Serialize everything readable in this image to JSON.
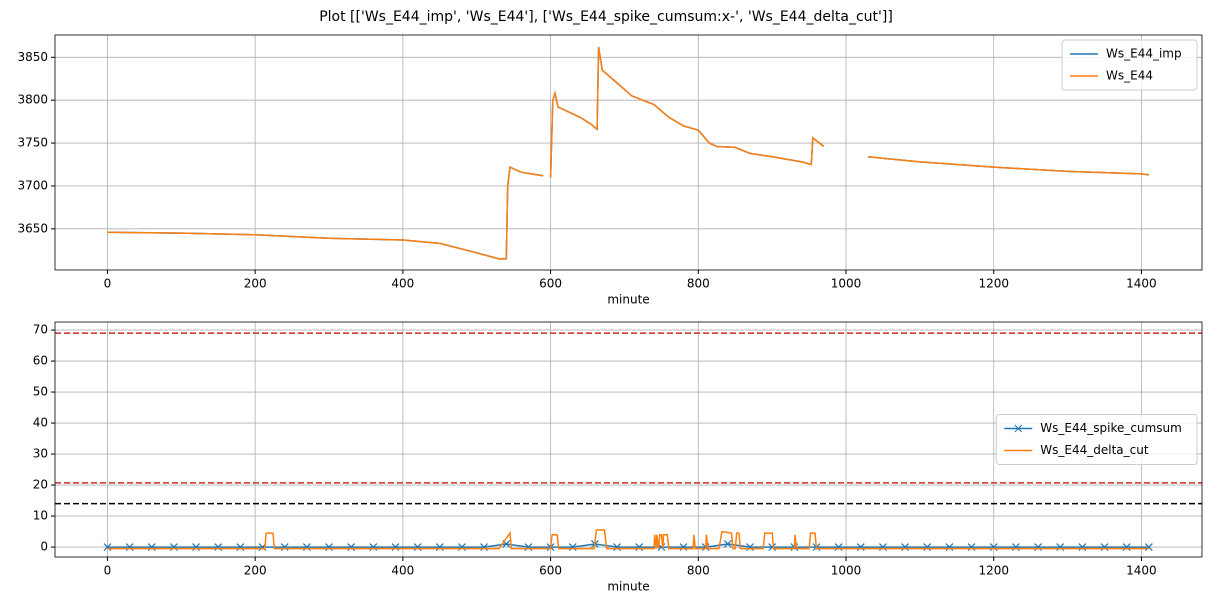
{
  "title": "Plot [['Ws_E44_imp', 'Ws_E44'], ['Ws_E44_spike_cumsum:x-', 'Ws_E44_delta_cut']]",
  "chart_data": [
    {
      "type": "line",
      "xlabel": "minute",
      "x": [
        0,
        100,
        200,
        300,
        400,
        450,
        500,
        530,
        540,
        542,
        545,
        550,
        560,
        590,
        595,
        600,
        603,
        606,
        610,
        640,
        655,
        660,
        663,
        665,
        670,
        690,
        710,
        740,
        760,
        780,
        800,
        815,
        825,
        850,
        870,
        900,
        940,
        953,
        955,
        970,
        1000,
        1030,
        1100,
        1200,
        1300,
        1400,
        1410
      ],
      "series": [
        {
          "name": "Ws_E44_imp",
          "color": "#1f77b4",
          "values": [
            3646,
            3645,
            3643,
            3639,
            3637,
            3633,
            3622,
            3615,
            3615,
            3700,
            3722,
            3720,
            3716,
            3712,
            null,
            3710,
            3800,
            3808,
            3792,
            3780,
            3772,
            3768,
            3766,
            3862,
            3835,
            3820,
            3805,
            3795,
            3780,
            3770,
            3765,
            3750,
            3746,
            3745,
            3738,
            3734,
            3728,
            3725,
            3756,
            3746,
            null,
            3734,
            3728,
            3722,
            3717,
            3714,
            3713
          ]
        },
        {
          "name": "Ws_E44",
          "color": "#ff7f0e",
          "values": [
            3646,
            3645,
            3643,
            3639,
            3637,
            3633,
            3622,
            3615,
            3615,
            3700,
            3722,
            3720,
            3716,
            3712,
            null,
            3710,
            3800,
            3808,
            3792,
            3780,
            3772,
            3768,
            3766,
            3862,
            3835,
            3820,
            3805,
            3795,
            3780,
            3770,
            3765,
            3750,
            3746,
            3745,
            3738,
            3734,
            3728,
            3725,
            3756,
            3746,
            null,
            3734,
            3728,
            3722,
            3717,
            3714,
            3713
          ]
        }
      ],
      "xlim": [
        -71,
        1482
      ],
      "xticks": [
        0,
        200,
        400,
        600,
        800,
        1000,
        1200,
        1400
      ],
      "ylim": [
        3602,
        3876
      ],
      "yticks": [
        3650,
        3700,
        3750,
        3800,
        3850
      ],
      "grid": true,
      "legend": "upper right"
    },
    {
      "type": "line",
      "xlabel": "minute",
      "series": [
        {
          "name": "Ws_E44_spike_cumsum",
          "color": "#1f77b4",
          "marker": "x",
          "x": [
            0,
            30,
            60,
            90,
            120,
            150,
            180,
            210,
            240,
            270,
            300,
            330,
            360,
            390,
            420,
            450,
            480,
            510,
            540,
            570,
            600,
            630,
            660,
            690,
            720,
            750,
            780,
            810,
            840,
            870,
            900,
            930,
            960,
            990,
            1020,
            1050,
            1080,
            1110,
            1140,
            1170,
            1200,
            1230,
            1260,
            1290,
            1320,
            1350,
            1380,
            1410
          ],
          "values": [
            0,
            0,
            0,
            0,
            0,
            0,
            0,
            0,
            0,
            0,
            0,
            0,
            0,
            0,
            0,
            0,
            0,
            0,
            1,
            0,
            0,
            0,
            1,
            0,
            0,
            0,
            0,
            0,
            1,
            0,
            0,
            0,
            0,
            0,
            0,
            0,
            0,
            0,
            0,
            0,
            0,
            0,
            0,
            0,
            0,
            0,
            0,
            0
          ]
        },
        {
          "name": "Ws_E44_delta_cut",
          "color": "#ff7f0e",
          "x": [
            0,
            213,
            215,
            224,
            226,
            530,
            545,
            547,
            600,
            602,
            609,
            611,
            659,
            662,
            673,
            676,
            740,
            741,
            743,
            744,
            746,
            748,
            750,
            752,
            753,
            758,
            760,
            793,
            794,
            796,
            810,
            811,
            813,
            828,
            832,
            845,
            847,
            850,
            852,
            855,
            857,
            888,
            890,
            900,
            902,
            930,
            931,
            933,
            950,
            952,
            958,
            960,
            1410
          ],
          "values": [
            -0.5,
            -0.5,
            4.5,
            4.5,
            -0.5,
            -0.5,
            4.5,
            -0.5,
            -0.5,
            4,
            4,
            -0.5,
            -0.5,
            5.5,
            5.5,
            -0.5,
            -0.5,
            4,
            -0.5,
            4,
            -0.5,
            4,
            4,
            -0.5,
            4,
            4,
            -0.5,
            -0.5,
            4,
            -0.5,
            -0.5,
            4,
            -0.5,
            -0.5,
            5,
            4.5,
            -0.5,
            -0.5,
            4.5,
            4.5,
            -0.5,
            -0.5,
            4.5,
            4.5,
            -0.5,
            -0.5,
            4,
            -0.5,
            -0.5,
            4.5,
            4.5,
            -0.5,
            -0.5
          ]
        }
      ],
      "hlines": [
        {
          "value": 69,
          "color": "#d62728"
        },
        {
          "value": 20.7,
          "color": "#d62728"
        },
        {
          "value": 14,
          "color": "#000000"
        }
      ],
      "xlim": [
        -71,
        1482
      ],
      "xticks": [
        0,
        200,
        400,
        600,
        800,
        1000,
        1200,
        1400
      ],
      "ylim": [
        -3.2,
        72.6
      ],
      "yticks": [
        0,
        10,
        20,
        30,
        40,
        50,
        60,
        70
      ],
      "grid": true,
      "legend": "center right"
    }
  ]
}
